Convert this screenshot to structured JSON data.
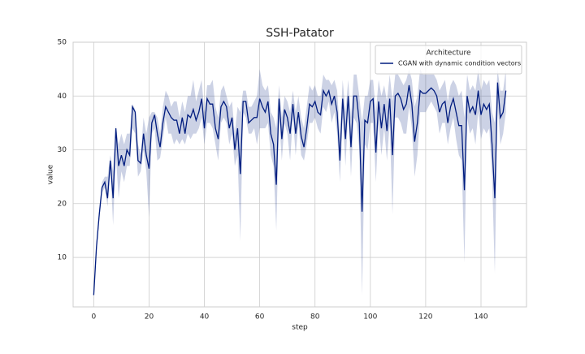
{
  "chart_data": {
    "type": "line",
    "title": "SSH-Patator",
    "xlabel": "step",
    "ylabel": "value",
    "legend_title": "Architecture",
    "legend": "upper right",
    "grid": true,
    "xlim": [
      -7.45,
      156.45
    ],
    "ylim": [
      0.8,
      50
    ],
    "xticks": [
      0,
      20,
      40,
      60,
      80,
      100,
      120,
      140
    ],
    "yticks": [
      10,
      20,
      30,
      40,
      50
    ],
    "x": [
      0,
      1,
      2,
      3,
      4,
      5,
      6,
      7,
      8,
      9,
      10,
      11,
      12,
      13,
      14,
      15,
      16,
      17,
      18,
      19,
      20,
      21,
      22,
      23,
      24,
      25,
      26,
      27,
      28,
      29,
      30,
      31,
      32,
      33,
      34,
      35,
      36,
      37,
      38,
      39,
      40,
      41,
      42,
      43,
      44,
      45,
      46,
      47,
      48,
      49,
      50,
      51,
      52,
      53,
      54,
      55,
      56,
      57,
      58,
      59,
      60,
      61,
      62,
      63,
      64,
      65,
      66,
      67,
      68,
      69,
      70,
      71,
      72,
      73,
      74,
      75,
      76,
      77,
      78,
      79,
      80,
      81,
      82,
      83,
      84,
      85,
      86,
      87,
      88,
      89,
      90,
      91,
      92,
      93,
      94,
      95,
      96,
      97,
      98,
      99,
      100,
      101,
      102,
      103,
      104,
      105,
      106,
      107,
      108,
      109,
      110,
      111,
      112,
      113,
      114,
      115,
      116,
      117,
      118,
      119,
      120,
      121,
      122,
      123,
      124,
      125,
      126,
      127,
      128,
      129,
      130,
      131,
      132,
      133,
      134,
      135,
      136,
      137,
      138,
      139,
      140,
      141,
      142,
      143,
      144,
      145,
      146,
      147,
      148,
      149
    ],
    "series": [
      {
        "name": "CGAN with dynamic condition vectors",
        "color": "#001c7f",
        "values": [
          3,
          12,
          18,
          23,
          24,
          21,
          28,
          21,
          34,
          27,
          29,
          27,
          30,
          29,
          38,
          37,
          28,
          27.5,
          33,
          29,
          26.5,
          35,
          36.5,
          33,
          30.5,
          35,
          38,
          37,
          36,
          35.5,
          35.5,
          33,
          36,
          33,
          36.5,
          36,
          37.5,
          35.5,
          37,
          39.5,
          34,
          39.5,
          38.5,
          38.5,
          34,
          32,
          38,
          39,
          38,
          34,
          36,
          30,
          34,
          25.5,
          39,
          39,
          35,
          35.5,
          36,
          36,
          39.5,
          38,
          37,
          39,
          33,
          31,
          23.5,
          39.5,
          32,
          37.5,
          36,
          33,
          38.5,
          33,
          37,
          32.5,
          30.5,
          34,
          38.5,
          38,
          39,
          37,
          36.5,
          41,
          40,
          41,
          38.5,
          40,
          37,
          28,
          39.5,
          32,
          40,
          30.5,
          40,
          40,
          35,
          18.5,
          35.5,
          35,
          39,
          39.5,
          29.5,
          39,
          34,
          38.5,
          33.5,
          39.5,
          29,
          40,
          40.5,
          39.5,
          37.5,
          38.5,
          42,
          38.5,
          31.5,
          35,
          41,
          40.5,
          40.5,
          41,
          41.5,
          41,
          40,
          37,
          38.5,
          39,
          35,
          38,
          39.5,
          37,
          34.5,
          34.5,
          22.5,
          40,
          37,
          38,
          36.5,
          41,
          36.5,
          38.5,
          37.5,
          38.5,
          31,
          21,
          42.5,
          36,
          37,
          41
        ],
        "lower": [
          3,
          11,
          17,
          22,
          23,
          19.5,
          26.5,
          16,
          29,
          21,
          26,
          24,
          27,
          27,
          34,
          33,
          25,
          26,
          30,
          26,
          17.5,
          33,
          34,
          28,
          28.5,
          32,
          36,
          33,
          33,
          31,
          32,
          31,
          32,
          31,
          33,
          32,
          33,
          33,
          34,
          36,
          31,
          35,
          35,
          34,
          31,
          28,
          35,
          36,
          35,
          31,
          33,
          27,
          29,
          13,
          37,
          36,
          33,
          33,
          34,
          31,
          34,
          34,
          34,
          35,
          29,
          27,
          15,
          36,
          28,
          35,
          33,
          28,
          36,
          29,
          35,
          29,
          28,
          31,
          35,
          35,
          36,
          34,
          33,
          38,
          37,
          39,
          35,
          37,
          33,
          24,
          36,
          27,
          37,
          25,
          36,
          35,
          30,
          3,
          31,
          30,
          35,
          35,
          24,
          35,
          29,
          34,
          28,
          35,
          18,
          36,
          36,
          35,
          33,
          33,
          38,
          34,
          25,
          29,
          37,
          37,
          37,
          38,
          39,
          38,
          37,
          33,
          35,
          35,
          31,
          34,
          36,
          32,
          29,
          28,
          9,
          36,
          33,
          34,
          31,
          37,
          32,
          34,
          33,
          34,
          25,
          7,
          39,
          31,
          33,
          37
        ],
        "upper": [
          3,
          13,
          19,
          24,
          25,
          25,
          29,
          26,
          34.5,
          31,
          33,
          31,
          33,
          33,
          38.5,
          37.5,
          31,
          29,
          36,
          33,
          36,
          37,
          37,
          36,
          33,
          38,
          41,
          40,
          38,
          39,
          39,
          36,
          39,
          37,
          40,
          40,
          43,
          39,
          41,
          43,
          37,
          42,
          42,
          43,
          38,
          36,
          41,
          42,
          40,
          38,
          39,
          33,
          38,
          37,
          41,
          41,
          38,
          38,
          39,
          40,
          45,
          42,
          41,
          42,
          37,
          36,
          34,
          42,
          36,
          40,
          39,
          37,
          41,
          37,
          40,
          36,
          34,
          38,
          42,
          41,
          42,
          40,
          40,
          44,
          43,
          43,
          42,
          43,
          41,
          33,
          43,
          37,
          43,
          36,
          44,
          44,
          40,
          35,
          40,
          40,
          43,
          43,
          37,
          43,
          40,
          42,
          39,
          44,
          39,
          44,
          44,
          43,
          42,
          43,
          45,
          43,
          38,
          40,
          45,
          44,
          44,
          44,
          44,
          44,
          43,
          41,
          42,
          43,
          39,
          42,
          43,
          42,
          40,
          41,
          36,
          44,
          41,
          42,
          41,
          45,
          41,
          43,
          42,
          43,
          37,
          35,
          45,
          41,
          41,
          45
        ]
      }
    ]
  }
}
